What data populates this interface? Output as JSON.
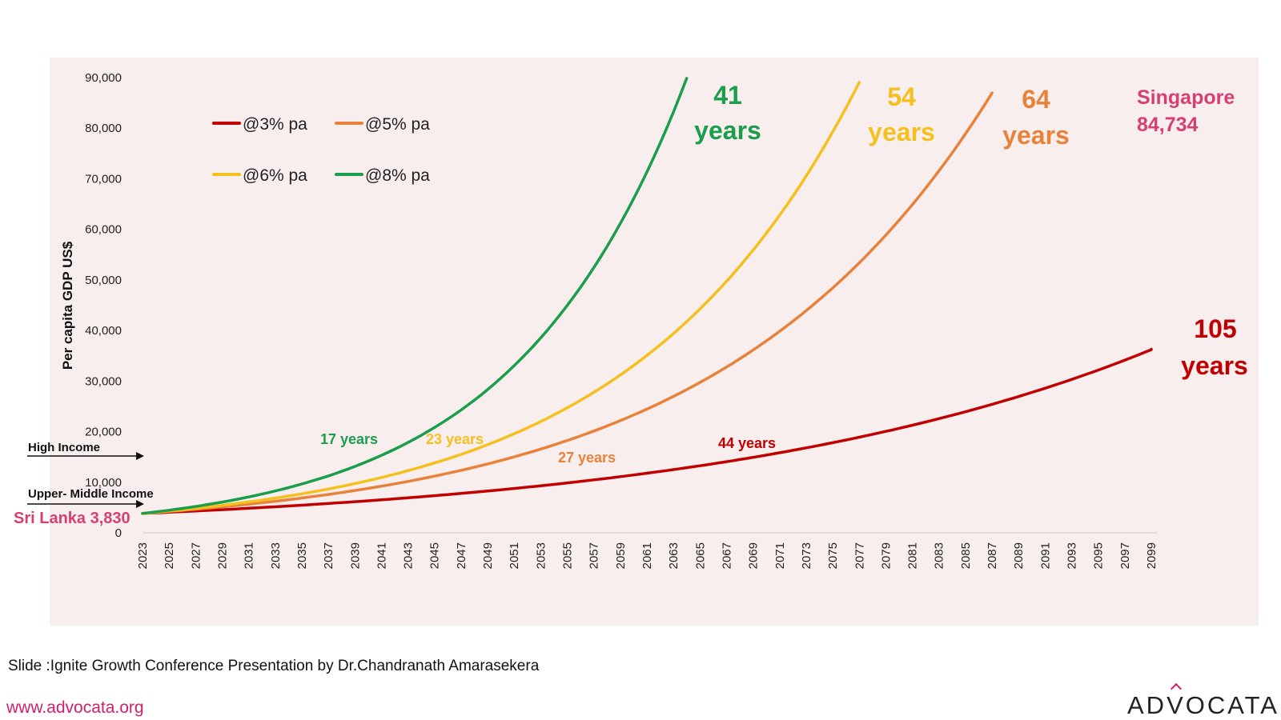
{
  "chart_data": {
    "type": "line",
    "ylabel": "Per capita GDP US$",
    "ylim": [
      0,
      90000
    ],
    "yticks": [
      "0",
      "10,000",
      "20,000",
      "30,000",
      "40,000",
      "50,000",
      "60,000",
      "70,000",
      "80,000",
      "90,000"
    ],
    "x_start": 2023,
    "x_end": 2099,
    "x_tick_step": 2,
    "start_value": 3830,
    "legend": [
      {
        "label": "@3% pa",
        "color": "#c00000"
      },
      {
        "label": "@5% pa",
        "color": "#e8823a"
      },
      {
        "label": "@6% pa",
        "color": "#f5c01d"
      },
      {
        "label": "@8% pa",
        "color": "#1a9e4b"
      }
    ],
    "series": [
      {
        "name": "@3% pa",
        "rate": 0.03,
        "x": [
          2023,
          2033,
          2043,
          2053,
          2063,
          2073,
          2083,
          2099
        ],
        "values": [
          3830,
          5147,
          6917,
          9296,
          12493,
          16790,
          22564,
          36303
        ],
        "color": "#c00000"
      },
      {
        "name": "@5% pa",
        "rate": 0.05,
        "x": [
          2023,
          2033,
          2043,
          2053,
          2063,
          2073,
          2083,
          2087
        ],
        "values": [
          3830,
          6239,
          10162,
          16553,
          26963,
          43920,
          71540,
          86966
        ],
        "color": "#e8823a"
      },
      {
        "name": "@6% pa",
        "rate": 0.06,
        "x": [
          2023,
          2033,
          2043,
          2053,
          2063,
          2073,
          2077
        ],
        "values": [
          3830,
          6859,
          12283,
          21997,
          39393,
          70546,
          89063
        ],
        "color": "#f5c01d"
      },
      {
        "name": "@8% pa",
        "rate": 0.08,
        "x": [
          2023,
          2033,
          2043,
          2053,
          2063,
          2064
        ],
        "values": [
          3830,
          8269,
          17851,
          38539,
          83204,
          89860
        ],
        "color": "#1a9e4b"
      }
    ],
    "annotations": {
      "high_income": "High Income",
      "upper_middle_income": "Upper- Middle Income",
      "start_country": "Sri Lanka 3,830",
      "target_line1": "Singapore",
      "target_line2": "84,734",
      "green_mid": "17 years",
      "yellow_mid": "23 years",
      "orange_mid": "27 years",
      "red_mid": "44 years",
      "green_end_num": "41",
      "green_end_word": "years",
      "yellow_end_num": "54",
      "yellow_end_word": "years",
      "orange_end_num": "64",
      "orange_end_word": "years",
      "red_end_num": "105",
      "red_end_word": "years"
    },
    "colors": {
      "red": "#c00000",
      "orange": "#e8823a",
      "yellow": "#f5c01d",
      "green": "#1a9e4b",
      "pink": "#d63f73"
    }
  },
  "footer": {
    "caption": "Slide :Ignite Growth Conference Presentation by Dr.Chandranath Amarasekera",
    "website": "www.advocata.org",
    "logo_pre": "AD",
    "logo_v": "V",
    "logo_post": "OCATA"
  }
}
